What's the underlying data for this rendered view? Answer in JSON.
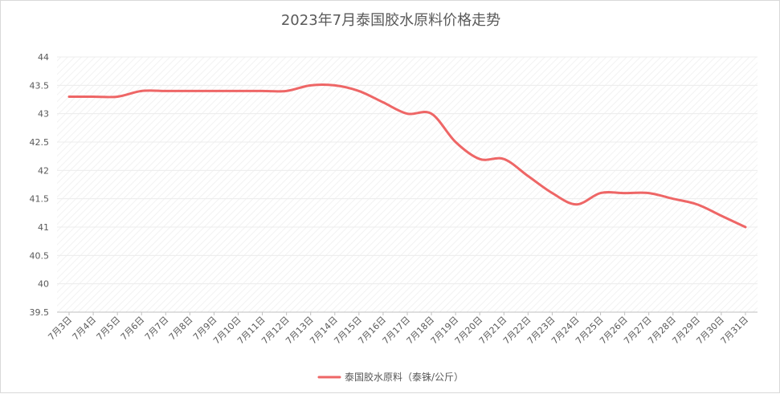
{
  "chart_data": {
    "type": "line",
    "title": "2023年7月泰国胶水原料价格走势",
    "xlabel": "",
    "ylabel": "",
    "ylim": [
      39.5,
      44
    ],
    "yticks": [
      "39.5",
      "40",
      "40.5",
      "41",
      "41.5",
      "42",
      "42.5",
      "43",
      "43.5",
      "44"
    ],
    "categories": [
      "7月3日",
      "7月4日",
      "7月5日",
      "7月6日",
      "7月7日",
      "7月8日",
      "7月9日",
      "7月10日",
      "7月11日",
      "7月12日",
      "7月13日",
      "7月14日",
      "7月15日",
      "7月16日",
      "7月17日",
      "7月18日",
      "7月19日",
      "7月20日",
      "7月21日",
      "7月22日",
      "7月23日",
      "7月24日",
      "7月25日",
      "7月26日",
      "7月27日",
      "7月28日",
      "7月29日",
      "7月30日",
      "7月31日"
    ],
    "series": [
      {
        "name": "泰国胶水原料（泰铢/公斤）",
        "color": "#ee6666",
        "values": [
          43.3,
          43.3,
          43.3,
          43.4,
          43.4,
          43.4,
          43.4,
          43.4,
          43.4,
          43.4,
          43.5,
          43.5,
          43.4,
          43.2,
          43.0,
          43.0,
          42.5,
          42.2,
          42.2,
          41.9,
          41.6,
          41.4,
          41.6,
          41.6,
          41.6,
          41.5,
          41.4,
          41.2,
          41.0
        ]
      }
    ],
    "grid": true,
    "legend_position": "bottom-center"
  }
}
